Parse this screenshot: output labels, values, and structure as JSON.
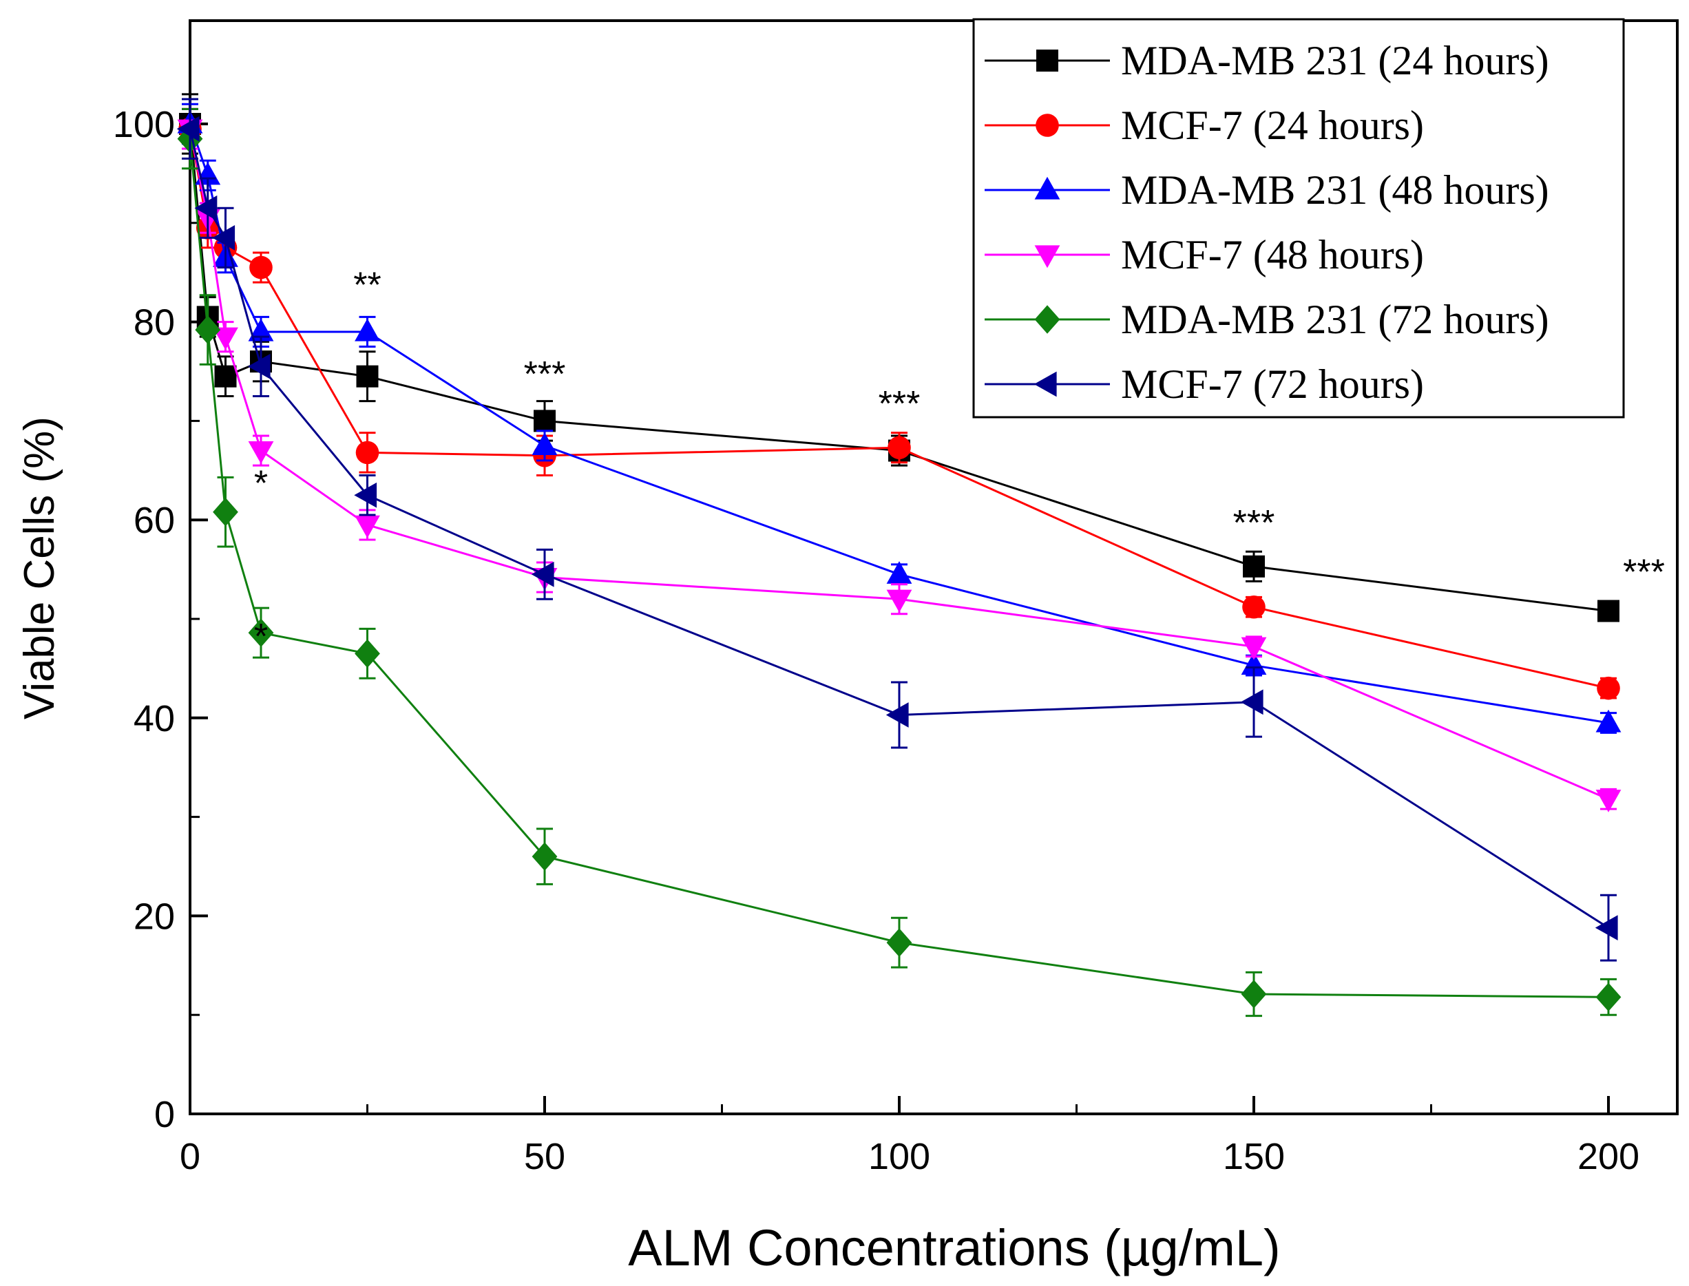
{
  "chart_data": {
    "type": "line",
    "title": "",
    "xlabel": "ALM Concentrations (µg/mL)",
    "ylabel": "Viable Cells (%)",
    "xlim": [
      0,
      210
    ],
    "ylim": [
      0,
      110
    ],
    "xticks": [
      0,
      50,
      100,
      150,
      200
    ],
    "yticks": [
      0,
      20,
      40,
      60,
      80,
      100
    ],
    "grid": false,
    "legend_position": "top-right",
    "x": [
      0,
      2.5,
      5,
      10,
      25,
      50,
      100,
      150,
      200
    ],
    "series": [
      {
        "name": "MDA-MB 231 (24 hours)",
        "color": "#000000",
        "marker": "square",
        "values": [
          100,
          80.5,
          74.5,
          76,
          74.5,
          70,
          67,
          55.3,
          50.8
        ],
        "errors": [
          3,
          2,
          2,
          2,
          2.5,
          2,
          1.5,
          1.5,
          1
        ]
      },
      {
        "name": "MCF-7 (24 hours)",
        "color": "#ff0000",
        "marker": "circle",
        "values": [
          99.5,
          89.5,
          87.5,
          85.5,
          66.8,
          66.5,
          67.3,
          51.2,
          43
        ],
        "errors": [
          2,
          2,
          1.5,
          1.5,
          2,
          2,
          1.5,
          1,
          1
        ]
      },
      {
        "name": "MDA-MB 231 (48 hours)",
        "color": "#0000ff",
        "marker": "triangle-up",
        "values": [
          100,
          94.8,
          86.5,
          79,
          79,
          67.5,
          54.5,
          45.3,
          39.5
        ],
        "errors": [
          2,
          1.5,
          1.5,
          1.5,
          1.5,
          1.5,
          1,
          1,
          1
        ]
      },
      {
        "name": "MCF-7 (48 hours)",
        "color": "#ff00ff",
        "marker": "triangle-down",
        "values": [
          99.5,
          90.5,
          78.5,
          67,
          59.5,
          54.2,
          52,
          47.2,
          31.8
        ],
        "errors": [
          2,
          1.5,
          1.5,
          1.5,
          1.5,
          1.5,
          1.5,
          1,
          1
        ]
      },
      {
        "name": "MDA-MB 231 (72 hours)",
        "color": "#108010",
        "marker": "diamond",
        "values": [
          98.5,
          79.2,
          60.8,
          48.6,
          46.5,
          26,
          17.3,
          12.1,
          11.8
        ],
        "errors": [
          3,
          3.5,
          3.5,
          2.5,
          2.5,
          2.8,
          2.5,
          2.2,
          1.8
        ]
      },
      {
        "name": "MCF-7 (72 hours)",
        "color": "#00008b",
        "marker": "triangle-left",
        "values": [
          99.5,
          91.5,
          88.5,
          75.5,
          62.5,
          54.5,
          40.3,
          41.6,
          18.8
        ],
        "errors": [
          3,
          3,
          3,
          3,
          2,
          2.5,
          3.3,
          3.5,
          3.3
        ]
      }
    ],
    "annotations": [
      {
        "text": "*",
        "x": 10,
        "y": 62.5
      },
      {
        "text": "*",
        "x": 10,
        "y": 47
      },
      {
        "text": "**",
        "x": 25,
        "y": 82.5
      },
      {
        "text": "***",
        "x": 50,
        "y": 73.5
      },
      {
        "text": "***",
        "x": 100,
        "y": 70.5
      },
      {
        "text": "***",
        "x": 150,
        "y": 58.5
      },
      {
        "text": "***",
        "x": 205,
        "y": 53.5
      }
    ]
  }
}
